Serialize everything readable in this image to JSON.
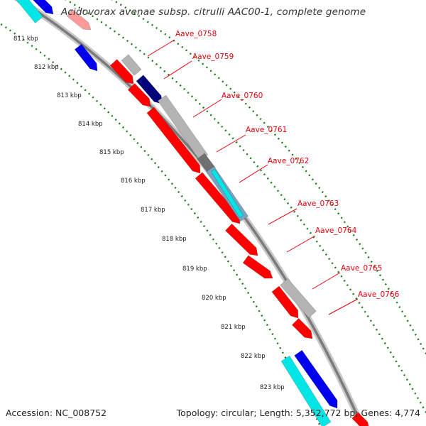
{
  "title": "Acidovorax avenae subsp. citrulli AAC00-1, complete genome",
  "accession": "Accession: NC_008752",
  "summary": "Topology: circular; Length: 5,352,772 bp; Genes: 4,774",
  "ticks": [
    "811 kbp",
    "812 kbp",
    "813 kbp",
    "814 kbp",
    "815 kbp",
    "816 kbp",
    "817 kbp",
    "818 kbp",
    "819 kbp",
    "820 kbp",
    "821 kbp",
    "822 kbp",
    "823 kbp"
  ],
  "genes": [
    "Aave_0758",
    "Aave_0759",
    "Aave_0760",
    "Aave_0761",
    "Aave_0762",
    "Aave_0763",
    "Aave_0764",
    "Aave_0765",
    "Aave_0766"
  ],
  "colors": {
    "label": "#e8000b",
    "forward_cds": "#ff0000",
    "gene_blue": "#0000ee",
    "gene_navy": "#00007a",
    "gene_cyan": "#00e5e5",
    "gene_gray": "#b4b4b4",
    "gene_darkgray": "#707070",
    "backbone": "#8c8c8c",
    "tick_green": "#1a7a1a"
  }
}
